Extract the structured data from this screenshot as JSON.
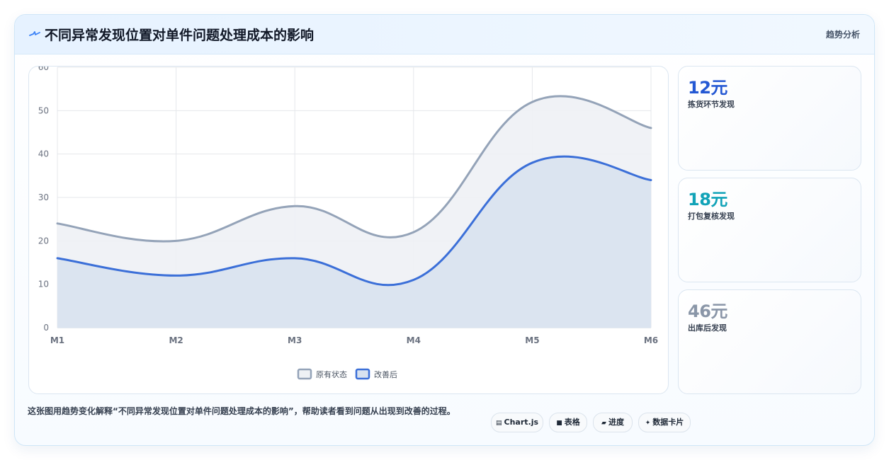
{
  "header": {
    "icon": "pulse-icon",
    "title": "不同异常发现位置对单件问题处理成本的影响",
    "tag": "趋势分析"
  },
  "chart_data": {
    "type": "line",
    "filled": true,
    "categories": [
      "M1",
      "M2",
      "M3",
      "M4",
      "M5",
      "M6"
    ],
    "series": [
      {
        "name": "原有状态",
        "values": [
          24,
          20,
          28,
          22,
          52,
          46
        ],
        "color": "#94a3b8",
        "fill": "#eef1f5"
      },
      {
        "name": "改善后",
        "values": [
          16,
          12,
          16,
          11,
          38,
          34
        ],
        "color": "#3b6fd8",
        "fill": "#d8e2f0"
      }
    ],
    "ylim": [
      0,
      60
    ],
    "yticks": [
      0,
      10,
      20,
      30,
      40,
      50,
      60
    ],
    "grid": true,
    "legend": "bottom",
    "xlabel": "",
    "ylabel": ""
  },
  "stats": [
    {
      "value": "12元",
      "label": "拣货环节发现",
      "color": "#2458d3"
    },
    {
      "value": "18元",
      "label": "打包复核发现",
      "color": "#12a3b8"
    },
    {
      "value": "46元",
      "label": "出库后发现",
      "color": "#8a96a8"
    }
  ],
  "footer": {
    "description": "这张图用趋势变化解释“不同异常发现位置对单件问题处理成本的影响”，帮助读者看到问题从出现到改善的过程。",
    "pills": [
      {
        "icon": "chart-icon",
        "glyph": "▤",
        "label": "Chart.js"
      },
      {
        "icon": "table-icon",
        "glyph": "■",
        "label": "表格"
      },
      {
        "icon": "progress-icon",
        "glyph": "▰",
        "label": "进度"
      },
      {
        "icon": "card-icon",
        "glyph": "✦",
        "label": "数据卡片"
      }
    ]
  }
}
